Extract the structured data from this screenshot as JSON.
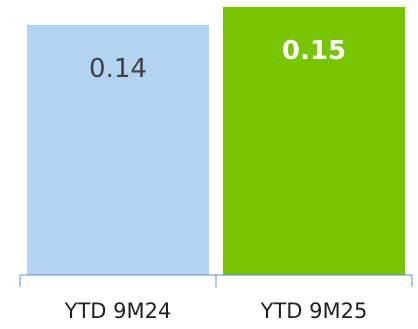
{
  "chart_data": {
    "type": "bar",
    "categories": [
      "YTD 9M24",
      "YTD 9M25"
    ],
    "values": [
      0.14,
      0.15
    ],
    "data_labels": [
      "0.14",
      "0.15"
    ],
    "ylim": [
      0,
      0.15
    ],
    "grid": false,
    "colors": [
      "#b4d3f3",
      "#77c400"
    ],
    "label_colors": [
      "#404040",
      "#ffffff"
    ],
    "label_bold": [
      false,
      true
    ],
    "axis_color": "#5b8fd6"
  }
}
